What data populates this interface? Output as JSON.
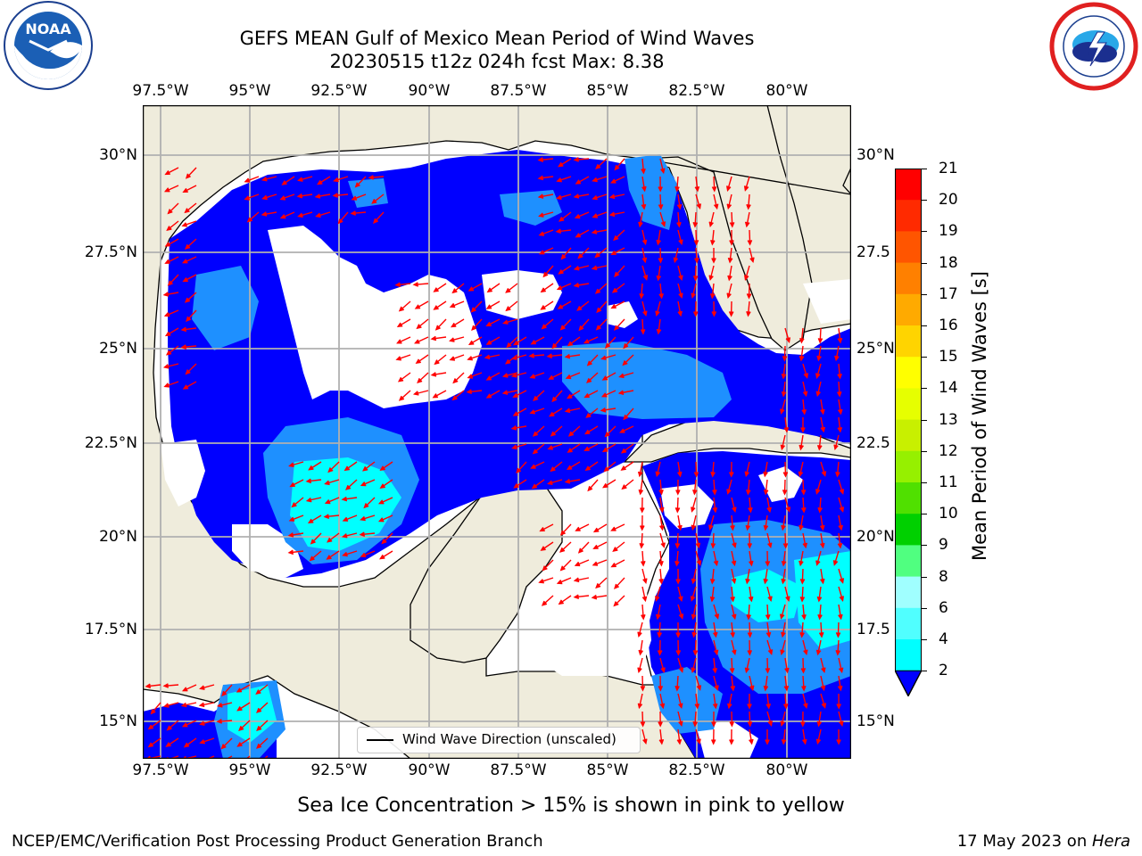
{
  "title": {
    "line1": "GEFS MEAN Gulf of Mexico Mean Period of Wind Waves",
    "line2": "20230515 t12z 024h fcst   Max: 8.38"
  },
  "logos": {
    "left": {
      "icon": "noaa-logo",
      "text": "NOAA",
      "ring_top": "NATIONAL OCEANIC AND ATMOSPHERIC ADMINISTRATION",
      "ring_bottom": "U.S. DEPARTMENT OF COMMERCE"
    },
    "right": {
      "icon": "nws-logo",
      "ring": "NATIONAL WEATHER SERVICE"
    }
  },
  "map": {
    "lon_labels": [
      "97.5°W",
      "95°W",
      "92.5°W",
      "90°W",
      "87.5°W",
      "85°W",
      "82.5°W",
      "80°W"
    ],
    "lat_labels_left": [
      "30°N",
      "27.5°N",
      "25°N",
      "22.5°N",
      "20°N",
      "17.5°N",
      "15°N"
    ],
    "lat_labels_right": [
      "30°N",
      "27.5",
      "25°N",
      "22.5",
      "20°N",
      "17.5",
      "15°N"
    ],
    "legend_label": "Wind Wave Direction (unscaled)",
    "colors": {
      "land": "#efecdc",
      "water_low": "#0000ff",
      "water_mid": "#1e90ff",
      "water_high": "#00ffff",
      "arrow": "#ff0000",
      "grid": "#b0b0b0"
    }
  },
  "colorbar": {
    "label": "Mean Period of Wind Waves [s]",
    "ticks": [
      "21",
      "20",
      "19",
      "18",
      "17",
      "16",
      "15",
      "14",
      "13",
      "12",
      "11",
      "10",
      "9",
      "8",
      "6",
      "4",
      "2"
    ],
    "colors": [
      "#ff0000",
      "#ff2a00",
      "#ff5500",
      "#ff8000",
      "#ffaa00",
      "#ffd400",
      "#ffff00",
      "#e6ff00",
      "#c8f000",
      "#96f000",
      "#50e000",
      "#00d000",
      "#50ff80",
      "#a0ffff",
      "#50ffff",
      "#00ffff",
      "#1e90ff"
    ],
    "extend_color": "#0000ff"
  },
  "note": "Sea Ice Concentration > 15% is shown in pink to yellow",
  "footer": {
    "left": "NCEP/EMC/Verification Post Processing Product Generation Branch",
    "right_date": "17 May 2023 on ",
    "right_host": "Hera"
  }
}
